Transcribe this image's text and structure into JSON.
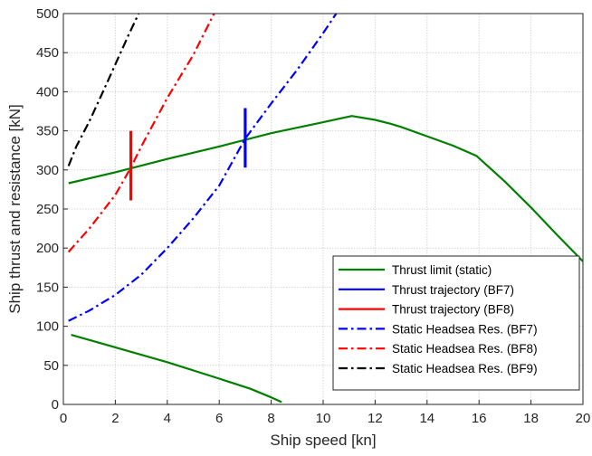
{
  "chart_data": {
    "type": "line",
    "xlabel": "Ship speed [kn]",
    "ylabel": "Ship thrust and resistance [kN]",
    "xlim": [
      0,
      20
    ],
    "ylim": [
      0,
      500
    ],
    "xticks": [
      0,
      2,
      4,
      6,
      8,
      10,
      12,
      14,
      16,
      18,
      20
    ],
    "yticks": [
      0,
      50,
      100,
      150,
      200,
      250,
      300,
      350,
      400,
      450,
      500
    ],
    "grid": true,
    "legend_position": "bottom-right",
    "series": [
      {
        "name": "Thrust limit (static)",
        "color": "#008000",
        "style": "solid",
        "segments": [
          [
            [
              0.2,
              283
            ],
            [
              2,
              297
            ],
            [
              4,
              314
            ],
            [
              6,
              330
            ],
            [
              8,
              347
            ],
            [
              10,
              361
            ],
            [
              11.1,
              369
            ],
            [
              12,
              364
            ],
            [
              12.6,
              359
            ],
            [
              13,
              355
            ],
            [
              14,
              343
            ],
            [
              15,
              331
            ],
            [
              15.9,
              318
            ],
            [
              17,
              285
            ],
            [
              18,
              252
            ],
            [
              19,
              217
            ],
            [
              20,
              183
            ]
          ],
          [
            [
              0.3,
              89
            ],
            [
              2,
              73
            ],
            [
              4,
              54
            ],
            [
              6,
              33
            ],
            [
              7.2,
              20
            ],
            [
              8,
              9
            ],
            [
              8.4,
              3
            ]
          ]
        ]
      },
      {
        "name": "Thrust trajectory (BF7)",
        "color": "#0000ff",
        "style": "solid",
        "segments": [
          [
            [
              7,
              303
            ],
            [
              7,
              379
            ]
          ]
        ]
      },
      {
        "name": "Thrust trajectory (BF8)",
        "color": "#ff0000",
        "style": "solid",
        "segments": [
          [
            [
              2.6,
              261
            ],
            [
              2.6,
              350
            ]
          ]
        ]
      },
      {
        "name": "Static Headsea Res. (BF7)",
        "color": "#0000ff",
        "style": "dashdot",
        "segments": [
          [
            [
              0.2,
              107
            ],
            [
              1,
              120
            ],
            [
              2,
              140
            ],
            [
              3,
              166
            ],
            [
              4,
              200
            ],
            [
              5,
              238
            ],
            [
              6,
              280
            ],
            [
              7,
              340
            ],
            [
              8,
              385
            ],
            [
              9,
              428
            ],
            [
              10,
              475
            ],
            [
              10.5,
              500
            ]
          ]
        ]
      },
      {
        "name": "Static Headsea Res. (BF8)",
        "color": "#ff0000",
        "style": "dashdot",
        "segments": [
          [
            [
              0.2,
              195
            ],
            [
              1,
              225
            ],
            [
              2,
              268
            ],
            [
              2.6,
              303
            ],
            [
              3,
              330
            ],
            [
              4,
              392
            ],
            [
              5,
              447
            ],
            [
              5.8,
              500
            ]
          ]
        ]
      },
      {
        "name": "Static Headsea Res. (BF9)",
        "color": "#000000",
        "style": "dashdot",
        "segments": [
          [
            [
              0.2,
              305
            ],
            [
              0.5,
              330
            ],
            [
              1,
              362
            ],
            [
              1.5,
              398
            ],
            [
              2,
              435
            ],
            [
              2.5,
              472
            ],
            [
              2.9,
              500
            ]
          ]
        ]
      }
    ]
  }
}
